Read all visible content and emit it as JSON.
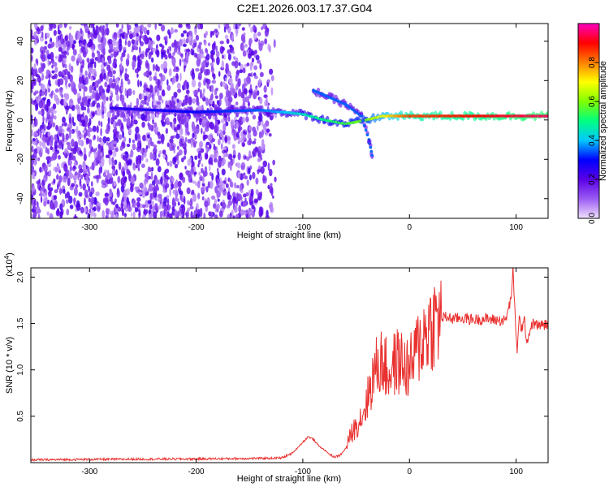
{
  "title": "C2E1.2026.003.17.37.G04",
  "chart_data": [
    {
      "type": "heatmap",
      "xlabel": "Height of straight line (km)",
      "ylabel": "Frequency (Hz)",
      "xlim": [
        -355,
        130
      ],
      "ylim": [
        -50,
        49
      ],
      "x_ticks": [
        -300,
        -200,
        -100,
        0,
        100
      ],
      "x_tick_labels": [
        "-300",
        "-200",
        "-100",
        "0",
        "100"
      ],
      "y_ticks": [
        -40,
        -20,
        0,
        20,
        40
      ],
      "y_tick_labels": [
        "-40",
        "-20",
        "0",
        "20",
        "40"
      ],
      "colorbar": {
        "label": "Normalized spectral amplitude",
        "range": [
          0,
          1
        ],
        "ticks": [
          0.0,
          0.2,
          0.4,
          0.6,
          0.8
        ],
        "tick_labels": [
          "0.0",
          "0.2",
          "0.4",
          "0.6",
          "0.8"
        ],
        "colors": [
          "#f0e0ff",
          "#9b5cf2",
          "#5a00e6",
          "#0000ff",
          "#00c8ff",
          "#00ff80",
          "#80ff00",
          "#ffff00",
          "#ff8000",
          "#ff0000",
          "#ff00c0"
        ]
      },
      "features": [
        {
          "name": "scattered noise",
          "x_range": [
            -355,
            -125
          ],
          "y_range": [
            -50,
            49
          ],
          "amplitude": 0.15
        },
        {
          "name": "main ridge",
          "points": [
            [
              -280,
              6
            ],
            [
              -200,
              4
            ],
            [
              -140,
              5
            ],
            [
              -120,
              4
            ],
            [
              -100,
              3
            ],
            [
              -80,
              0
            ],
            [
              -60,
              -2
            ],
            [
              -40,
              0
            ],
            [
              -25,
              2
            ],
            [
              0,
              2
            ],
            [
              130,
              2
            ]
          ],
          "amplitude": [
            0.25,
            0.3,
            0.35,
            0.4,
            0.45,
            0.5,
            0.55,
            0.6,
            0.7,
            0.85,
            0.95
          ]
        },
        {
          "name": "branch",
          "points": [
            [
              -90,
              15
            ],
            [
              -60,
              8
            ],
            [
              -45,
              2
            ],
            [
              -38,
              -10
            ],
            [
              -35,
              -18
            ]
          ],
          "amplitude": 0.35
        }
      ]
    },
    {
      "type": "line",
      "xlabel": "Height of straight line (km)",
      "ylabel": "SNR (10 * v/v)",
      "y_multiplier": "(x10",
      "y_multiplier_exp": "4",
      "y_multiplier_close": ")",
      "xlim": [
        -355,
        130
      ],
      "ylim": [
        0,
        21000
      ],
      "x_ticks": [
        -300,
        -200,
        -100,
        0,
        100
      ],
      "x_tick_labels": [
        "-300",
        "-200",
        "-100",
        "0",
        "100"
      ],
      "y_ticks": [
        5000,
        10000,
        15000,
        20000
      ],
      "y_tick_labels": [
        "0.5",
        "1.0",
        "1.5",
        "2.0"
      ],
      "series": [
        {
          "name": "SNR",
          "color": "#e8302e",
          "x": [
            -355,
            -300,
            -250,
            -200,
            -150,
            -120,
            -110,
            -100,
            -95,
            -90,
            -85,
            -80,
            -75,
            -70,
            -65,
            -60,
            -55,
            -50,
            -45,
            -40,
            -35,
            -30,
            -25,
            -20,
            -15,
            -10,
            -5,
            0,
            5,
            10,
            15,
            20,
            25,
            30,
            35,
            40,
            50,
            60,
            70,
            80,
            90,
            95,
            97,
            99,
            101,
            103,
            105,
            108,
            110,
            115,
            120,
            130
          ],
          "y": [
            300,
            350,
            380,
            400,
            450,
            500,
            1000,
            2200,
            2800,
            2500,
            1800,
            1400,
            900,
            600,
            800,
            1500,
            3000,
            4000,
            5000,
            6500,
            9000,
            10500,
            11000,
            9500,
            10500,
            11000,
            10500,
            10000,
            11500,
            13000,
            14000,
            14800,
            15300,
            15600,
            15700,
            15500,
            15600,
            15400,
            15500,
            15400,
            15300,
            17500,
            20500,
            16000,
            12000,
            15500,
            14500,
            15200,
            13000,
            15000,
            14800,
            14900
          ]
        }
      ]
    }
  ]
}
